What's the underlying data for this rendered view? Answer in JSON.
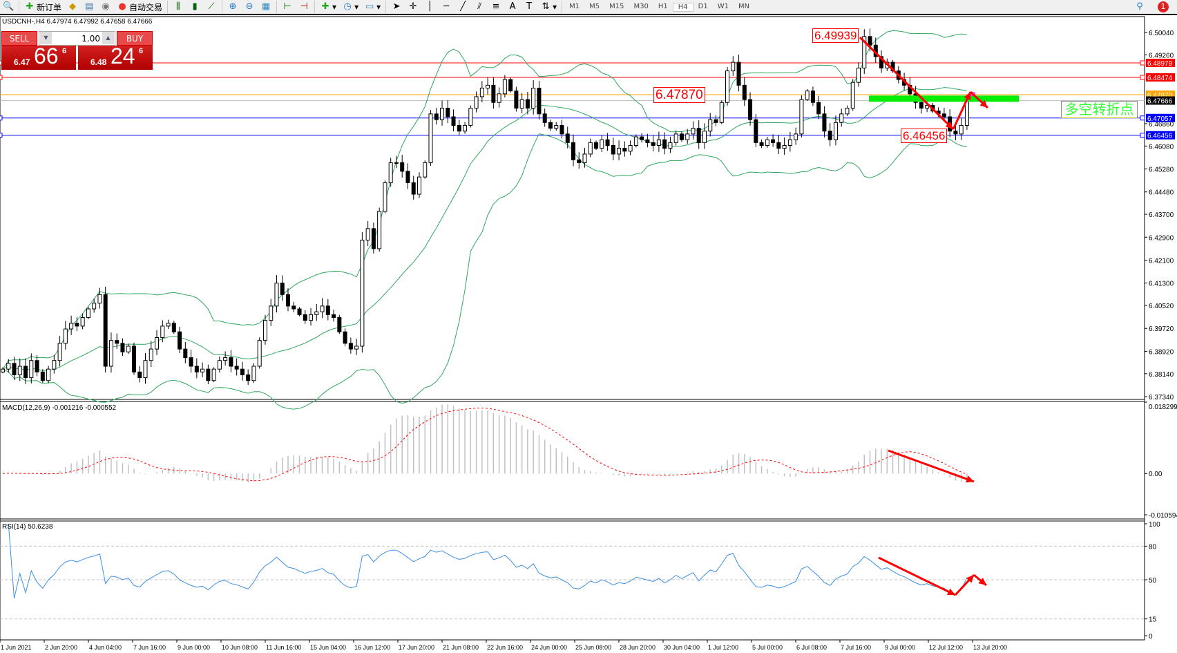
{
  "toolbar": {
    "new_order": "新订单",
    "auto_trading": "自动交易",
    "timeframes": [
      "M1",
      "M5",
      "M15",
      "M30",
      "H1",
      "H4",
      "D1",
      "W1",
      "MN"
    ],
    "active_timeframe": "H4",
    "notification_count": "1"
  },
  "chart_header": "USDCNH-,H4  6.47974 6.47992 6.47658 6.47666",
  "trade_panel": {
    "sell_label": "SELL",
    "buy_label": "BUY",
    "lot": "1.00",
    "sell_small": "6.47",
    "sell_big": "66",
    "sell_pip": "6",
    "buy_small": "6.48",
    "buy_big": "24",
    "buy_pip": "6"
  },
  "annotations": {
    "high_label": "6.49939",
    "mid_label": "6.47870",
    "low_label": "6.46456",
    "text_box": "多空转折点"
  },
  "colors": {
    "up_candle": "#ffffff",
    "down_candle": "#000000",
    "bands": "#2ea65a",
    "resistance": "#ff0000",
    "support": "#0000ff",
    "pivot": "#ffa500",
    "zone": "#00ee00",
    "rsi": "#3a8ee6",
    "macd_signal": "#ff0000"
  },
  "chart_data": {
    "type": "candlestick",
    "symbol": "USDCNH-",
    "timeframe": "H4",
    "ylim": [
      6.3734,
      6.5004
    ],
    "y_ticks": [
      "6.50040",
      "6.49260",
      "6.46860",
      "6.46080",
      "6.45280",
      "6.44480",
      "6.43700",
      "6.42900",
      "6.42100",
      "6.41300",
      "6.40520",
      "6.39720",
      "6.38920",
      "6.38140",
      "6.37340"
    ],
    "x_ticks": [
      "1 Jun 2021",
      "2 Jun 20:00",
      "4 Jun 04:00",
      "7 Jun 16:00",
      "9 Jun 00:00",
      "10 Jun 08:00",
      "11 Jun 16:00",
      "15 Jun 04:00",
      "16 Jun 12:00",
      "17 Jun 20:00",
      "21 Jun 08:00",
      "22 Jun 16:00",
      "24 Jun 00:00",
      "25 Jun 08:00",
      "28 Jun 20:00",
      "30 Jun 04:00",
      "1 Jul 12:00",
      "5 Jul 00:00",
      "6 Jul 08:00",
      "7 Jul 16:00",
      "9 Jul 00:00",
      "12 Jul 12:00",
      "13 Jul 20:00"
    ],
    "closes": [
      6.383,
      6.385,
      6.381,
      6.384,
      6.38,
      6.386,
      6.382,
      6.379,
      6.383,
      6.386,
      6.392,
      6.397,
      6.399,
      6.398,
      6.401,
      6.404,
      6.406,
      6.409,
      6.384,
      6.393,
      6.392,
      6.389,
      6.391,
      6.382,
      6.38,
      6.386,
      6.39,
      6.394,
      6.398,
      6.399,
      6.396,
      6.39,
      6.387,
      6.384,
      6.382,
      6.383,
      6.379,
      6.383,
      6.386,
      6.387,
      6.384,
      6.383,
      6.381,
      6.379,
      6.384,
      6.393,
      6.4,
      6.405,
      6.413,
      6.409,
      6.405,
      6.404,
      6.402,
      6.4,
      6.402,
      6.403,
      6.405,
      6.402,
      6.401,
      6.396,
      6.392,
      6.39,
      6.391,
      6.428,
      6.432,
      6.425,
      6.438,
      6.448,
      6.455,
      6.455,
      6.452,
      6.448,
      6.444,
      6.45,
      6.455,
      6.472,
      6.47,
      6.474,
      6.471,
      6.468,
      6.466,
      6.468,
      6.474,
      6.478,
      6.481,
      6.482,
      6.476,
      6.479,
      6.484,
      6.48,
      6.474,
      6.477,
      6.474,
      6.481,
      6.472,
      6.469,
      6.467,
      6.468,
      6.465,
      6.462,
      6.456,
      6.455,
      6.458,
      6.462,
      6.46,
      6.463,
      6.461,
      6.458,
      6.46,
      6.459,
      6.461,
      6.464,
      6.463,
      6.462,
      6.461,
      6.463,
      6.46,
      6.462,
      6.465,
      6.463,
      6.465,
      6.467,
      6.462,
      6.466,
      6.47,
      6.469,
      6.476,
      6.487,
      6.49,
      6.482,
      6.477,
      6.47,
      6.462,
      6.461,
      6.463,
      6.462,
      6.46,
      6.461,
      6.463,
      6.465,
      6.477,
      6.48,
      6.476,
      6.472,
      6.466,
      6.463,
      6.469,
      6.472,
      6.474,
      6.483,
      6.488,
      6.499,
      6.496,
      6.492,
      6.488,
      6.49,
      6.487,
      6.484,
      6.482,
      6.479,
      6.476,
      6.474,
      6.475,
      6.473,
      6.472,
      6.471,
      6.466,
      6.465,
      6.468,
      6.47666
    ],
    "levels": [
      {
        "price": 6.48979,
        "label": "6.48979",
        "color": "#ff0000"
      },
      {
        "price": 6.48474,
        "label": "6.48474",
        "color": "#ff0000"
      },
      {
        "price": 6.4787,
        "label": "6.47870",
        "color": "#ffa500"
      },
      {
        "price": 6.47666,
        "label": "6.47666",
        "color": "#000000"
      },
      {
        "price": 6.47057,
        "label": "6.47057",
        "color": "#0000ff"
      },
      {
        "price": 6.46456,
        "label": "6.46456",
        "color": "#0000ff"
      }
    ],
    "macd": {
      "label": "MACD(12,26,9) -0.001216 -0.000552",
      "ylim": [
        -0.010594,
        0.018299
      ],
      "ticks": [
        "0.018299",
        "0.00",
        "-0.010594"
      ]
    },
    "rsi": {
      "label": "RSI(14) 50.6238",
      "levels": [
        80,
        50,
        15
      ],
      "ticks": [
        "100",
        "80",
        "50",
        "15",
        "0"
      ]
    }
  }
}
